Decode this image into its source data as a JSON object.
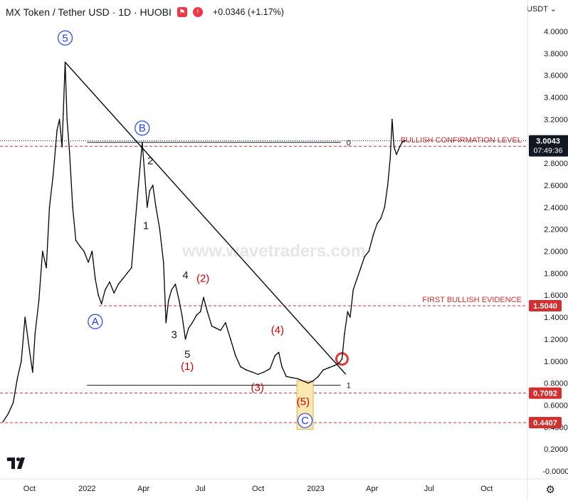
{
  "header": {
    "title": "MX Token / Tether USD · 1D · HUOBI",
    "change": "+0.0346 (+1.17%)",
    "currency": "USDT",
    "currency_chevron": "chevron-down-icon"
  },
  "watermark": "www.wavetraders.com",
  "colors": {
    "price_line": "#000000",
    "red_level": "#d32f2f",
    "label_red_bg": "#d32f2f",
    "label_dark_bg": "#131722",
    "wave_blue": "#1e40ff",
    "wave_red": "#d50000",
    "highlight_box": "#fde9b0"
  },
  "chart_data": {
    "type": "line",
    "title": "MX Token / Tether USD · 1D · HUOBI",
    "xlabel": "",
    "ylabel": "",
    "ylim": [
      -0.1,
      4.1
    ],
    "y_ticks": [
      "4.0000",
      "3.8000",
      "3.6000",
      "3.4000",
      "3.2000",
      "3.0000",
      "2.8000",
      "2.6000",
      "2.4000",
      "2.2000",
      "2.0000",
      "1.8000",
      "1.6000",
      "1.4000",
      "1.2000",
      "1.0000",
      "0.8000",
      "0.6000",
      "0.4000",
      "0.2000",
      "-0.0000"
    ],
    "y_tick_values": [
      4.0,
      3.8,
      3.6,
      3.4,
      3.2,
      3.0,
      2.8,
      2.6,
      2.4,
      2.2,
      2.0,
      1.8,
      1.6,
      1.4,
      1.2,
      1.0,
      0.8,
      0.6,
      0.4,
      0.2,
      0.0
    ],
    "x_ticks": [
      {
        "label": "Oct",
        "date": "2021-10-01"
      },
      {
        "label": "2022",
        "date": "2022-01-01"
      },
      {
        "label": "Apr",
        "date": "2022-04-01"
      },
      {
        "label": "Jul",
        "date": "2022-07-01"
      },
      {
        "label": "Oct",
        "date": "2022-10-01"
      },
      {
        "label": "2023",
        "date": "2023-01-01"
      },
      {
        "label": "Apr",
        "date": "2023-04-01"
      },
      {
        "label": "Jul",
        "date": "2023-07-01"
      },
      {
        "label": "Oct",
        "date": "2023-10-01"
      }
    ],
    "x_range": [
      "2021-08-15",
      "2023-12-05"
    ],
    "series": [
      {
        "values": [
          {
            "x": "2021-08-20",
            "y": 0.45
          },
          {
            "x": "2021-08-28",
            "y": 0.52
          },
          {
            "x": "2021-09-05",
            "y": 0.62
          },
          {
            "x": "2021-09-12",
            "y": 0.85
          },
          {
            "x": "2021-09-18",
            "y": 1.0
          },
          {
            "x": "2021-09-24",
            "y": 1.4
          },
          {
            "x": "2021-10-01",
            "y": 1.1
          },
          {
            "x": "2021-10-06",
            "y": 0.9
          },
          {
            "x": "2021-10-10",
            "y": 1.25
          },
          {
            "x": "2021-10-16",
            "y": 1.55
          },
          {
            "x": "2021-10-22",
            "y": 2.0
          },
          {
            "x": "2021-10-28",
            "y": 1.85
          },
          {
            "x": "2021-11-02",
            "y": 2.4
          },
          {
            "x": "2021-11-08",
            "y": 2.7
          },
          {
            "x": "2021-11-14",
            "y": 3.1
          },
          {
            "x": "2021-11-18",
            "y": 3.2
          },
          {
            "x": "2021-11-22",
            "y": 2.95
          },
          {
            "x": "2021-11-24",
            "y": 3.25
          },
          {
            "x": "2021-11-27",
            "y": 3.72
          },
          {
            "x": "2021-11-30",
            "y": 3.2
          },
          {
            "x": "2021-12-04",
            "y": 2.9
          },
          {
            "x": "2021-12-09",
            "y": 2.4
          },
          {
            "x": "2021-12-14",
            "y": 2.1
          },
          {
            "x": "2021-12-20",
            "y": 2.05
          },
          {
            "x": "2021-12-27",
            "y": 2.0
          },
          {
            "x": "2022-01-03",
            "y": 1.9
          },
          {
            "x": "2022-01-09",
            "y": 2.0
          },
          {
            "x": "2022-01-14",
            "y": 1.75
          },
          {
            "x": "2022-01-19",
            "y": 1.6
          },
          {
            "x": "2022-01-24",
            "y": 1.52
          },
          {
            "x": "2022-01-30",
            "y": 1.65
          },
          {
            "x": "2022-02-06",
            "y": 1.72
          },
          {
            "x": "2022-02-13",
            "y": 1.62
          },
          {
            "x": "2022-02-20",
            "y": 1.7
          },
          {
            "x": "2022-02-27",
            "y": 1.75
          },
          {
            "x": "2022-03-06",
            "y": 1.8
          },
          {
            "x": "2022-03-13",
            "y": 1.85
          },
          {
            "x": "2022-03-18",
            "y": 2.2
          },
          {
            "x": "2022-03-24",
            "y": 2.6
          },
          {
            "x": "2022-03-30",
            "y": 2.99
          },
          {
            "x": "2022-04-03",
            "y": 2.7
          },
          {
            "x": "2022-04-07",
            "y": 2.4
          },
          {
            "x": "2022-04-11",
            "y": 2.55
          },
          {
            "x": "2022-04-16",
            "y": 2.6
          },
          {
            "x": "2022-04-21",
            "y": 2.4
          },
          {
            "x": "2022-04-27",
            "y": 2.2
          },
          {
            "x": "2022-05-03",
            "y": 1.9
          },
          {
            "x": "2022-05-07",
            "y": 1.35
          },
          {
            "x": "2022-05-11",
            "y": 1.55
          },
          {
            "x": "2022-05-16",
            "y": 1.65
          },
          {
            "x": "2022-05-22",
            "y": 1.7
          },
          {
            "x": "2022-05-28",
            "y": 1.55
          },
          {
            "x": "2022-06-02",
            "y": 1.4
          },
          {
            "x": "2022-06-07",
            "y": 1.2
          },
          {
            "x": "2022-06-12",
            "y": 1.3
          },
          {
            "x": "2022-06-18",
            "y": 1.35
          },
          {
            "x": "2022-06-25",
            "y": 1.42
          },
          {
            "x": "2022-07-01",
            "y": 1.45
          },
          {
            "x": "2022-07-06",
            "y": 1.58
          },
          {
            "x": "2022-07-12",
            "y": 1.45
          },
          {
            "x": "2022-07-19",
            "y": 1.32
          },
          {
            "x": "2022-07-26",
            "y": 1.3
          },
          {
            "x": "2022-08-02",
            "y": 1.28
          },
          {
            "x": "2022-08-10",
            "y": 1.35
          },
          {
            "x": "2022-08-18",
            "y": 1.2
          },
          {
            "x": "2022-08-26",
            "y": 1.05
          },
          {
            "x": "2022-09-03",
            "y": 0.95
          },
          {
            "x": "2022-09-12",
            "y": 0.92
          },
          {
            "x": "2022-09-22",
            "y": 0.9
          },
          {
            "x": "2022-10-01",
            "y": 0.88
          },
          {
            "x": "2022-10-10",
            "y": 0.9
          },
          {
            "x": "2022-10-20",
            "y": 0.93
          },
          {
            "x": "2022-10-28",
            "y": 1.05
          },
          {
            "x": "2022-11-03",
            "y": 1.08
          },
          {
            "x": "2022-11-08",
            "y": 0.95
          },
          {
            "x": "2022-11-15",
            "y": 0.86
          },
          {
            "x": "2022-11-24",
            "y": 0.85
          },
          {
            "x": "2022-12-03",
            "y": 0.84
          },
          {
            "x": "2022-12-12",
            "y": 0.82
          },
          {
            "x": "2022-12-20",
            "y": 0.8
          },
          {
            "x": "2022-12-28",
            "y": 0.82
          },
          {
            "x": "2023-01-05",
            "y": 0.86
          },
          {
            "x": "2023-01-13",
            "y": 0.92
          },
          {
            "x": "2023-01-22",
            "y": 0.94
          },
          {
            "x": "2023-01-31",
            "y": 0.96
          },
          {
            "x": "2023-02-07",
            "y": 0.98
          },
          {
            "x": "2023-02-12",
            "y": 1.02
          },
          {
            "x": "2023-02-16",
            "y": 1.25
          },
          {
            "x": "2023-02-21",
            "y": 1.45
          },
          {
            "x": "2023-02-25",
            "y": 1.4
          },
          {
            "x": "2023-03-02",
            "y": 1.65
          },
          {
            "x": "2023-03-08",
            "y": 1.75
          },
          {
            "x": "2023-03-14",
            "y": 1.85
          },
          {
            "x": "2023-03-20",
            "y": 1.95
          },
          {
            "x": "2023-03-27",
            "y": 2.0
          },
          {
            "x": "2023-04-03",
            "y": 2.15
          },
          {
            "x": "2023-04-09",
            "y": 2.25
          },
          {
            "x": "2023-04-15",
            "y": 2.3
          },
          {
            "x": "2023-04-21",
            "y": 2.4
          },
          {
            "x": "2023-04-26",
            "y": 2.6
          },
          {
            "x": "2023-04-30",
            "y": 2.85
          },
          {
            "x": "2023-05-03",
            "y": 3.2
          },
          {
            "x": "2023-05-06",
            "y": 2.95
          },
          {
            "x": "2023-05-10",
            "y": 2.88
          },
          {
            "x": "2023-05-15",
            "y": 2.95
          },
          {
            "x": "2023-05-20",
            "y": 3.0
          },
          {
            "x": "2023-05-24",
            "y": 3.0043
          }
        ]
      }
    ],
    "levels": [
      {
        "price": 2.9547,
        "label": "BULLISH CONFIRMATION LEVEL",
        "tag": "2.9547",
        "color": "#d32f2f",
        "from": "2021-08-15"
      },
      {
        "price": 1.504,
        "label": "FIRST BULLISH EVIDENCE",
        "tag": "1.5040",
        "color": "#d32f2f",
        "from": "2022-01-20"
      },
      {
        "price": 0.7092,
        "label": "",
        "tag": "0.7092",
        "color": "#d32f2f",
        "from": "2021-08-15"
      },
      {
        "price": 0.4407,
        "label": "",
        "tag": "0.4407",
        "color": "#d32f2f",
        "from": "2021-08-15"
      }
    ],
    "current_price": {
      "price": 3.0043,
      "tag": "3.0043",
      "timer": "07:49:36"
    },
    "fib_lines": [
      {
        "label": "0",
        "price": 2.99,
        "from": "2022-01-01",
        "to": "2023-02-10"
      },
      {
        "label": "1",
        "price": 0.78,
        "from": "2022-01-01",
        "to": "2023-02-10"
      }
    ],
    "trendline": {
      "from": {
        "x": "2021-11-27",
        "y": 3.72
      },
      "to": {
        "x": "2023-02-18",
        "y": 0.88
      }
    },
    "wave_labels": [
      {
        "text": "5",
        "x": "2021-11-27",
        "y": 3.94,
        "style": "circle-blue"
      },
      {
        "text": "B",
        "x": "2022-03-30",
        "y": 3.12,
        "style": "circle-blue"
      },
      {
        "text": "A",
        "x": "2022-01-14",
        "y": 1.36,
        "style": "circle-blue"
      },
      {
        "text": "C",
        "x": "2022-12-15",
        "y": 0.46,
        "style": "circle-blue"
      },
      {
        "text": "2",
        "x": "2022-04-12",
        "y": 2.79,
        "style": "black"
      },
      {
        "text": "1",
        "x": "2022-04-05",
        "y": 2.2,
        "style": "black"
      },
      {
        "text": "4",
        "x": "2022-06-07",
        "y": 1.75,
        "style": "black"
      },
      {
        "text": "3",
        "x": "2022-05-20",
        "y": 1.21,
        "style": "black"
      },
      {
        "text": "5",
        "x": "2022-06-10",
        "y": 1.03,
        "style": "black"
      },
      {
        "text": "(2)",
        "x": "2022-07-05",
        "y": 1.72,
        "style": "red"
      },
      {
        "text": "(1)",
        "x": "2022-06-10",
        "y": 0.92,
        "style": "red"
      },
      {
        "text": "(4)",
        "x": "2022-11-01",
        "y": 1.25,
        "style": "red"
      },
      {
        "text": "(3)",
        "x": "2022-09-30",
        "y": 0.73,
        "style": "red"
      },
      {
        "text": "(5)",
        "x": "2022-12-12",
        "y": 0.6,
        "style": "red"
      }
    ]
  }
}
